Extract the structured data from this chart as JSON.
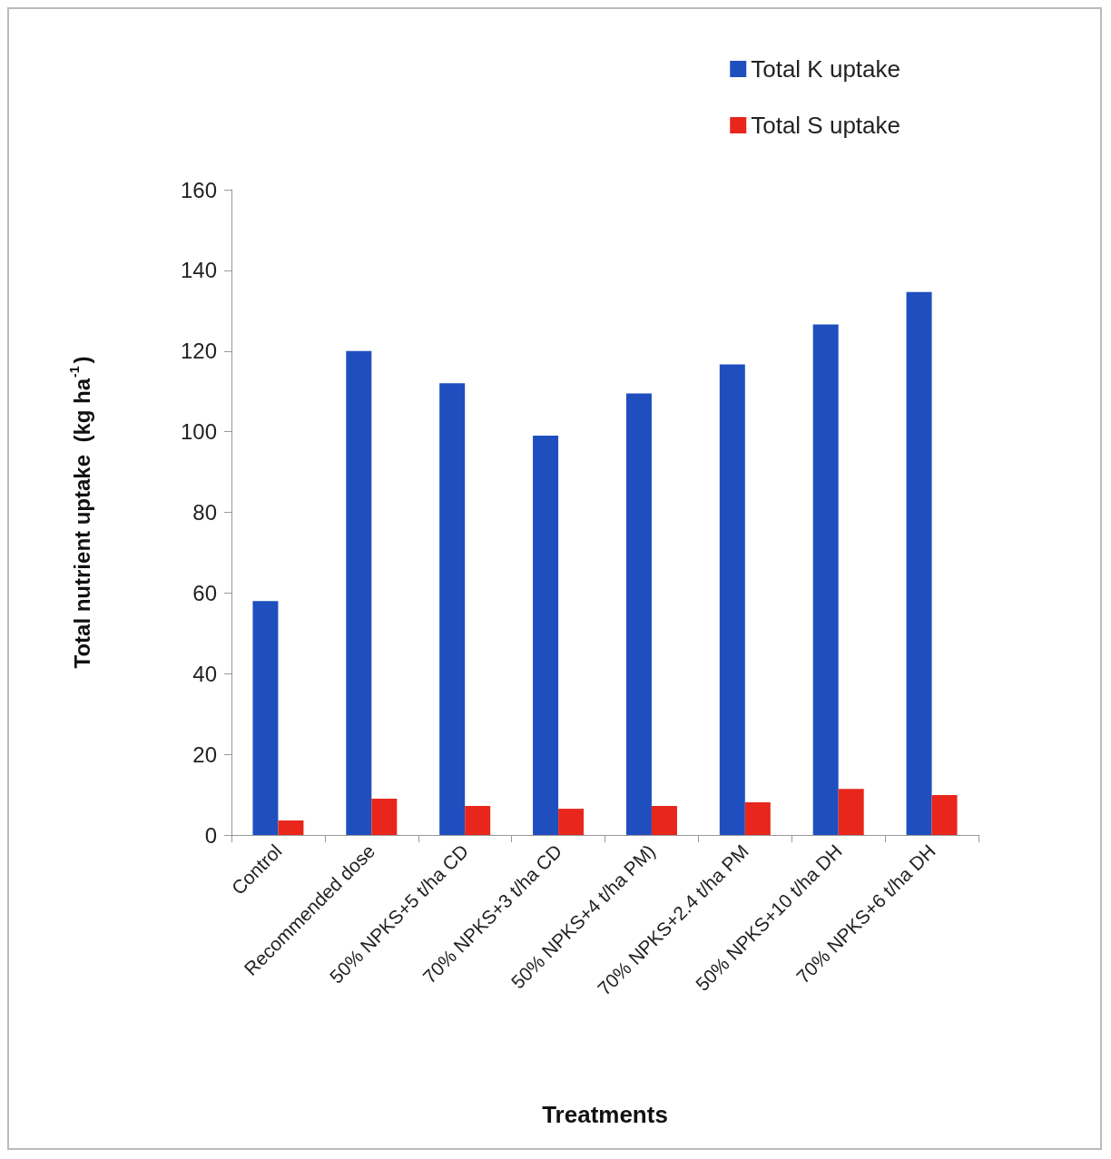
{
  "chart_data": {
    "type": "bar",
    "xlabel": "Treatments",
    "ylabel": "Total nutrient uptake  (kg ha$^{-1}$)",
    "categories": [
      "Control",
      "Recommended dose",
      "50% NPKS+5 t/ha CD",
      "70% NPKS+3 t/ha CD",
      "50% NPKS+4 t/ha PM)",
      "70% NPKS+2.4 t/ha PM",
      "50% NPKS+10 t/ha DH",
      "70% NPKS+6 t/ha DH"
    ],
    "series": [
      {
        "name": "Total K uptake",
        "color": "#1f4fbf",
        "values": [
          58,
          120,
          112,
          99,
          109.5,
          116.7,
          126.6,
          134.6
        ]
      },
      {
        "name": "Total S uptake",
        "color": "#e8261c",
        "values": [
          3.6,
          9,
          7.2,
          6.5,
          7.2,
          8.1,
          11.4,
          9.9
        ]
      }
    ],
    "ylim": [
      0,
      160
    ],
    "yticks": [
      0,
      20,
      40,
      60,
      80,
      100,
      120,
      140,
      160
    ],
    "grid": false,
    "legend": "top right"
  }
}
